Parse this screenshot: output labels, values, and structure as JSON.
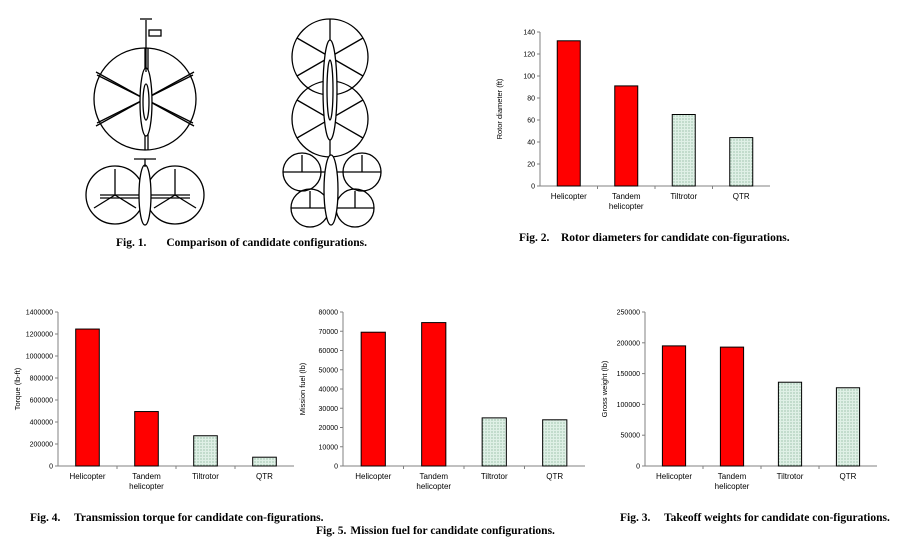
{
  "figures": {
    "fig1": {
      "number": "Fig. 1.",
      "caption": "Comparison of candidate configurations."
    },
    "fig2": {
      "number": "Fig. 2.",
      "caption": "Rotor diameters for candidate con-figurations."
    },
    "fig3": {
      "number": "Fig. 3.",
      "caption": "Takeoff weights for candidate con-figurations."
    },
    "fig4": {
      "number": "Fig. 4.",
      "caption": "Transmission torque for candidate con-figurations."
    },
    "fig5": {
      "number": "Fig. 5.",
      "caption": "Mission fuel for candidate configurations."
    }
  },
  "colors": {
    "helicopter_bar": "#ff0000",
    "tiltrotor_bar": "#dff0e6",
    "tiltrotor_hatch": "#7aa88a",
    "axis": "#808080"
  },
  "chart_data": [
    {
      "id": "rotor",
      "type": "bar",
      "categories": [
        "Helicopter",
        "Tandem helicopter",
        "Tiltrotor",
        "QTR"
      ],
      "values": [
        132,
        91,
        65,
        44
      ],
      "ylabel": "Rotor diameter (ft)",
      "xlabel": "",
      "ylim": [
        0,
        140
      ],
      "yticks": [
        0,
        20,
        40,
        60,
        80,
        100,
        120,
        140
      ],
      "tick_labels": [
        "0",
        "20",
        "40",
        "60",
        "80",
        "100",
        "120",
        "140"
      ]
    },
    {
      "id": "torque",
      "type": "bar",
      "categories": [
        "Helicopter",
        "Tandem helicopter",
        "Tiltrotor",
        "QTR"
      ],
      "values": [
        1245000,
        495000,
        275000,
        80000
      ],
      "ylabel": "Torque (lb-ft)",
      "xlabel": "",
      "ylim": [
        0,
        1400000
      ],
      "yticks": [
        0,
        200000,
        400000,
        600000,
        800000,
        1000000,
        1200000,
        1400000
      ],
      "tick_labels": [
        "0",
        "200000",
        "400000",
        "600000",
        "800000",
        "1000000",
        "1200000",
        "1400000"
      ]
    },
    {
      "id": "fuel",
      "type": "bar",
      "categories": [
        "Helicopter",
        "Tandem helicopter",
        "Tiltrotor",
        "QTR"
      ],
      "values": [
        69500,
        74500,
        25000,
        24000
      ],
      "ylabel": "Mission fuel (lb)",
      "xlabel": "",
      "ylim": [
        0,
        80000
      ],
      "yticks": [
        0,
        10000,
        20000,
        30000,
        40000,
        50000,
        60000,
        70000,
        80000
      ],
      "tick_labels": [
        "0",
        "10000",
        "20000",
        "30000",
        "40000",
        "50000",
        "60000",
        "70000",
        "80000"
      ]
    },
    {
      "id": "gross",
      "type": "bar",
      "categories": [
        "Helicopter",
        "Tandem helicopter",
        "Tiltrotor",
        "QTR"
      ],
      "values": [
        195000,
        193000,
        136000,
        127000
      ],
      "ylabel": "Gross weight (lb)",
      "xlabel": "",
      "ylim": [
        0,
        250000
      ],
      "yticks": [
        0,
        50000,
        100000,
        150000,
        200000,
        250000
      ],
      "tick_labels": [
        "0",
        "50000",
        "100000",
        "150000",
        "200000",
        "250000"
      ]
    }
  ]
}
